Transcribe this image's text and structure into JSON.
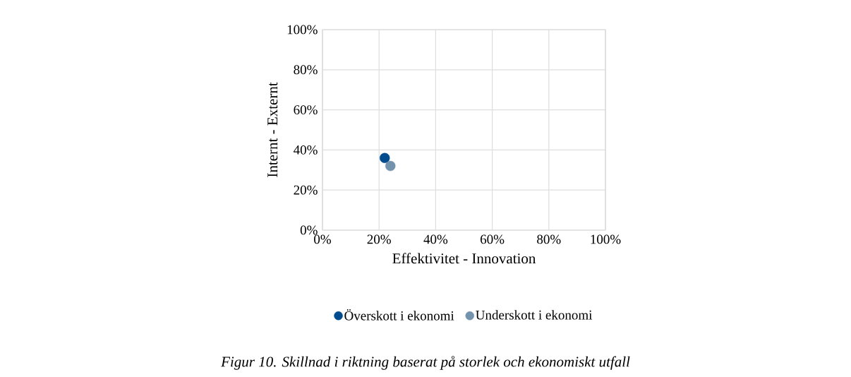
{
  "chart_data": {
    "type": "scatter",
    "xlabel": "Effektivitet - Innovation",
    "ylabel": "Internt - Externt",
    "series": [
      {
        "name": "Överskott i ekonomi",
        "color": "#004b8d",
        "x": [
          22
        ],
        "values": [
          36
        ]
      },
      {
        "name": "Underskott i ekonomi",
        "color": "#7393ad",
        "x": [
          24
        ],
        "values": [
          32
        ]
      }
    ],
    "xlim": [
      0,
      100
    ],
    "ylim": [
      0,
      100
    ],
    "xticks": [
      {
        "value": 0,
        "label": "0%"
      },
      {
        "value": 20,
        "label": "20%"
      },
      {
        "value": 40,
        "label": "40%"
      },
      {
        "value": 60,
        "label": "60%"
      },
      {
        "value": 80,
        "label": "80%"
      },
      {
        "value": 100,
        "label": "100%"
      }
    ],
    "yticks": [
      {
        "value": 0,
        "label": "0%"
      },
      {
        "value": 20,
        "label": "20%"
      },
      {
        "value": 40,
        "label": "40%"
      },
      {
        "value": 60,
        "label": "60%"
      },
      {
        "value": 80,
        "label": "80%"
      },
      {
        "value": 100,
        "label": "100%"
      }
    ],
    "grid": true,
    "legend": "bottom",
    "annotations": [
      "*Figur 10. Skillnad i riktning baserat på storlek och ekonomiskt utfall*"
    ]
  }
}
